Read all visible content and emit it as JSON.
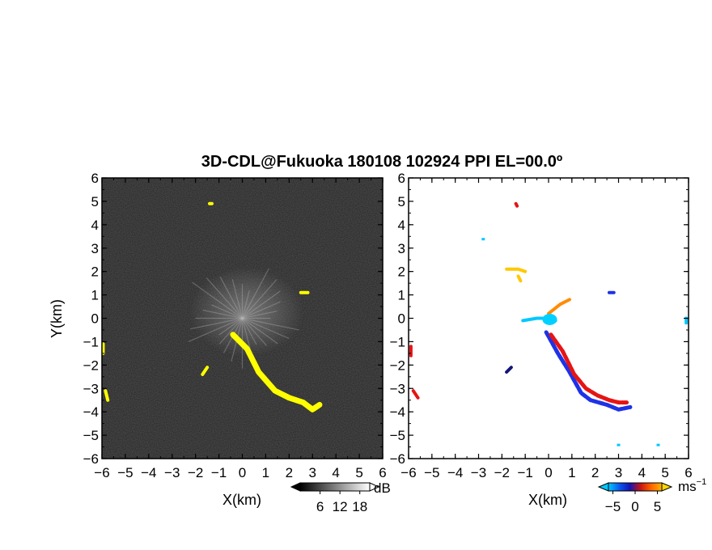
{
  "title": "3D-CDL@Fukuoka 180108 102924 PPI EL=00.0º",
  "chart_data": [
    {
      "type": "heatmap",
      "field": "dB",
      "xlabel": "X(km)",
      "ylabel": "Y(km)",
      "xlim": [
        -6,
        6
      ],
      "ylim": [
        -6,
        6
      ],
      "xticks": [
        -6,
        -5,
        -4,
        -3,
        -2,
        -1,
        0,
        1,
        2,
        3,
        4,
        5,
        6
      ],
      "yticks": [
        -6,
        -5,
        -4,
        -3,
        -2,
        -1,
        0,
        1,
        2,
        3,
        4,
        5,
        6
      ],
      "background": "#222222",
      "grid": false,
      "colorbar": {
        "unit": "dB",
        "ticks": [
          6,
          12,
          18
        ],
        "range": [
          0,
          21
        ]
      },
      "highlight_color": "#ffff00",
      "highlight_features": [
        {
          "name": "plume",
          "points": [
            [
              -0.4,
              -0.7
            ],
            [
              0.2,
              -1.3
            ],
            [
              0.7,
              -2.3
            ],
            [
              1.4,
              -3.1
            ],
            [
              2.0,
              -3.4
            ],
            [
              2.6,
              -3.6
            ],
            [
              3.0,
              -3.9
            ],
            [
              3.3,
              -3.7
            ]
          ]
        },
        {
          "name": "small-echo",
          "points": [
            [
              -1.7,
              -2.4
            ],
            [
              -1.5,
              -2.1
            ]
          ]
        },
        {
          "name": "small-echo",
          "points": [
            [
              2.5,
              1.1
            ],
            [
              2.8,
              1.1
            ]
          ]
        },
        {
          "name": "small-echo",
          "points": [
            [
              -1.4,
              4.9
            ],
            [
              -1.3,
              4.9
            ]
          ]
        },
        {
          "name": "edge-echo",
          "points": [
            [
              -5.95,
              -1.1
            ],
            [
              -5.95,
              -1.5
            ]
          ]
        },
        {
          "name": "edge-echo",
          "points": [
            [
              -5.85,
              -3.1
            ],
            [
              -5.75,
              -3.5
            ]
          ]
        }
      ]
    },
    {
      "type": "heatmap",
      "field": "velocity",
      "xlabel": "X(km)",
      "xlim": [
        -6,
        6
      ],
      "ylim": [
        -6,
        6
      ],
      "xticks": [
        -6,
        -5,
        -4,
        -3,
        -2,
        -1,
        0,
        1,
        2,
        3,
        4,
        5,
        6
      ],
      "yticks": [
        -6,
        -5,
        -4,
        -3,
        -2,
        -1,
        0,
        1,
        2,
        3,
        4,
        5,
        6
      ],
      "background": "#ffffff",
      "grid": false,
      "colorbar": {
        "unit": "ms",
        "unit_exponent": "−1",
        "ticks": [
          -5,
          0,
          5
        ],
        "range": [
          -6,
          6
        ],
        "colors": [
          "#00c8ff",
          "#0a5af0",
          "#1414b4",
          "#c81414",
          "#ff6400",
          "#ffb400"
        ]
      },
      "features": [
        {
          "name": "plume-blue",
          "color": "#1e32e6",
          "points": [
            [
              -0.1,
              -0.6
            ],
            [
              0.4,
              -1.5
            ],
            [
              0.9,
              -2.3
            ],
            [
              1.4,
              -3.2
            ],
            [
              1.8,
              -3.5
            ],
            [
              2.5,
              -3.7
            ],
            [
              3.0,
              -3.9
            ],
            [
              3.5,
              -3.8
            ]
          ]
        },
        {
          "name": "plume-red",
          "color": "#e61414",
          "points": [
            [
              0.1,
              -0.7
            ],
            [
              0.6,
              -1.4
            ],
            [
              1.1,
              -2.4
            ],
            [
              1.6,
              -3.0
            ],
            [
              2.1,
              -3.3
            ],
            [
              2.6,
              -3.5
            ],
            [
              3.0,
              -3.6
            ],
            [
              3.4,
              -3.6
            ]
          ]
        },
        {
          "name": "center-cyan",
          "color": "#00c8ff",
          "points": [
            [
              -1.1,
              -0.1
            ],
            [
              -0.5,
              0.0
            ],
            [
              0.0,
              0.0
            ],
            [
              0.3,
              -0.1
            ]
          ]
        },
        {
          "name": "yellow-north",
          "color": "#ffc800",
          "points": [
            [
              -1.8,
              2.1
            ],
            [
              -1.3,
              2.1
            ],
            [
              -1.0,
              2.0
            ]
          ]
        },
        {
          "name": "yellow-mid",
          "color": "#ffc800",
          "points": [
            [
              -1.3,
              1.8
            ],
            [
              -1.2,
              1.6
            ]
          ]
        },
        {
          "name": "orange-core",
          "color": "#ff8c00",
          "points": [
            [
              0.0,
              0.2
            ],
            [
              0.5,
              0.6
            ],
            [
              0.9,
              0.8
            ]
          ]
        },
        {
          "name": "scatter-red",
          "color": "#e61414",
          "points": [
            [
              -1.4,
              4.9
            ],
            [
              -1.35,
              4.8
            ]
          ]
        },
        {
          "name": "scatter-blue",
          "color": "#1e32e6",
          "points": [
            [
              2.6,
              1.1
            ],
            [
              2.8,
              1.1
            ]
          ]
        },
        {
          "name": "scatter-dark",
          "color": "#141478",
          "points": [
            [
              -1.8,
              -2.3
            ],
            [
              -1.6,
              -2.1
            ]
          ]
        },
        {
          "name": "edge-red",
          "color": "#e61414",
          "points": [
            [
              -5.9,
              -1.2
            ],
            [
              -5.9,
              -1.6
            ]
          ]
        },
        {
          "name": "edge-red2",
          "color": "#e61414",
          "points": [
            [
              -5.8,
              -3.1
            ],
            [
              -5.6,
              -3.4
            ]
          ]
        },
        {
          "name": "edge-cyan",
          "color": "#00c8ff",
          "points": [
            [
              5.9,
              0.0
            ],
            [
              5.9,
              -0.2
            ]
          ]
        },
        {
          "name": "dot-cyan",
          "color": "#00c8ff",
          "points": [
            [
              -2.8,
              3.4
            ]
          ]
        },
        {
          "name": "dot-cyan2",
          "color": "#00c8ff",
          "points": [
            [
              3.0,
              -5.4
            ]
          ]
        },
        {
          "name": "dot-cyan3",
          "color": "#00c8ff",
          "points": [
            [
              4.7,
              -5.4
            ]
          ]
        }
      ]
    }
  ]
}
